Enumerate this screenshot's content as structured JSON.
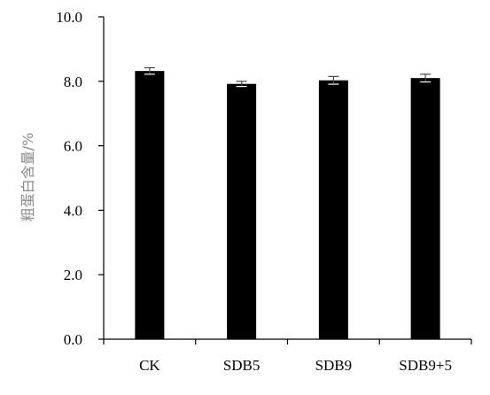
{
  "chart_data": {
    "type": "bar",
    "title": "",
    "xlabel": "",
    "ylabel": "粗蛋白含量/%",
    "ylim": [
      0,
      10
    ],
    "yticks": [
      "0.0",
      "2.0",
      "4.0",
      "6.0",
      "8.0",
      "10.0"
    ],
    "categories": [
      "CK",
      "SDB5",
      "SDB9",
      "SDB9+5"
    ],
    "series": [
      {
        "values": [
          8.32,
          7.92,
          8.03,
          8.1
        ],
        "errors": [
          0.1,
          0.08,
          0.12,
          0.12
        ]
      }
    ],
    "bar_color": "#000000",
    "grid": false,
    "legend": "none"
  }
}
